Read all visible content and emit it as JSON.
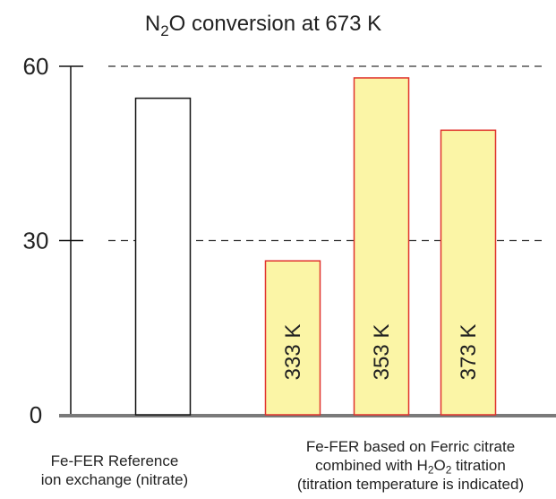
{
  "chart_data": {
    "type": "bar",
    "title": "N₂O conversion at 673 K",
    "title_parts": [
      "N",
      "2",
      "O conversion at 673 K"
    ],
    "ylim": [
      0,
      60
    ],
    "yticks": [
      "0",
      "30",
      "60"
    ],
    "grid": "dashed lines at 30 and 60",
    "series": [
      {
        "values": [
          54.5,
          null,
          null,
          null
        ],
        "color": "#ffffff",
        "edge_color": "#111111"
      },
      {
        "values": [
          null,
          26.5,
          58,
          49
        ],
        "color": "#fbf5a6",
        "edge_color": "#e0322c"
      }
    ],
    "bar_labels": [
      "",
      "333 K",
      "353 K",
      "373 K"
    ],
    "groups": [
      {
        "lines": [
          [
            "Fe-FER Reference"
          ],
          [
            "ion exchange (nitrate)"
          ]
        ]
      },
      {
        "lines": [
          [
            "Fe-FER based on Ferric citrate"
          ],
          [
            "combined with H",
            "2",
            "O",
            "2",
            " titration"
          ],
          [
            "(titration temperature is indicated)"
          ]
        ]
      }
    ]
  }
}
